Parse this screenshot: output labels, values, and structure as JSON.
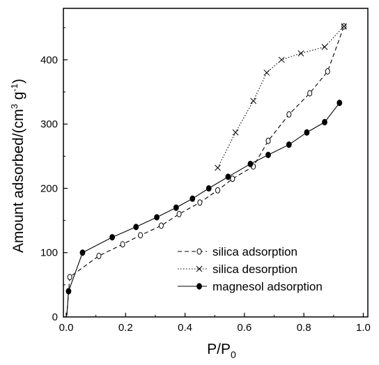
{
  "chart_data": {
    "type": "line",
    "xlabel": "P/P",
    "xlabel_sub": "0",
    "ylabel_pre": "Amount adsorbed/(cm",
    "ylabel_sup1": "3",
    "ylabel_mid": " g",
    "ylabel_sup2": "-1",
    "ylabel_post": ")",
    "xlim": [
      0,
      1.0
    ],
    "ylim": [
      0,
      480
    ],
    "xticks": [
      0.0,
      0.2,
      0.4,
      0.6,
      0.8,
      1.0
    ],
    "xtick_labels": [
      "0.0",
      "0.2",
      "0.4",
      "0.6",
      "0.8",
      "1.0"
    ],
    "yticks": [
      0,
      100,
      200,
      300,
      400
    ],
    "ytick_labels": [
      "0",
      "100",
      "200",
      "300",
      "400"
    ],
    "grid": false,
    "legend_position": "bottom-right",
    "series": [
      {
        "name": "silica adsorption",
        "marker": "open-circle",
        "line": "dashed",
        "x": [
          0.002,
          0.012,
          0.11,
          0.19,
          0.25,
          0.32,
          0.38,
          0.45,
          0.51,
          0.56,
          0.63,
          0.68,
          0.75,
          0.82,
          0.88,
          0.935
        ],
        "y": [
          2,
          62,
          95,
          113,
          127,
          142,
          160,
          178,
          197,
          215,
          234,
          274,
          315,
          348,
          382,
          452
        ]
      },
      {
        "name": "silica desorption",
        "marker": "x",
        "line": "dotted",
        "x": [
          0.51,
          0.57,
          0.63,
          0.675,
          0.725,
          0.79,
          0.87,
          0.935
        ],
        "y": [
          232,
          287,
          336,
          380,
          400,
          410,
          420,
          452
        ]
      },
      {
        "name": "magnesol adsorption",
        "marker": "filled-circle",
        "line": "solid",
        "x": [
          0.002,
          0.008,
          0.055,
          0.155,
          0.235,
          0.305,
          0.37,
          0.425,
          0.48,
          0.545,
          0.62,
          0.68,
          0.75,
          0.81,
          0.87,
          0.92
        ],
        "y": [
          2,
          40,
          100,
          124,
          140,
          155,
          170,
          184,
          200,
          218,
          238,
          252,
          268,
          287,
          303,
          333
        ]
      }
    ]
  }
}
